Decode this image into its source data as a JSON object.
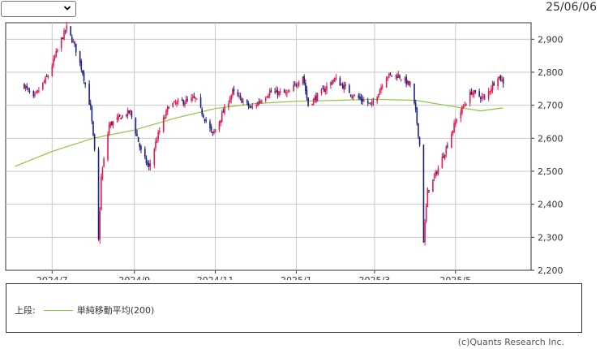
{
  "header": {
    "period_select": "",
    "date": "25/06/06"
  },
  "legend": {
    "section_label": "上段:",
    "ma_label": "単純移動平均(200)",
    "ma_color": "#8cc63f"
  },
  "footer": {
    "copyright": "(c)Quants Research Inc."
  },
  "chart_data": {
    "type": "candlestick",
    "title": "",
    "xlabel": "",
    "ylabel": "",
    "ylim": [
      2200,
      2950
    ],
    "yticks": [
      2200,
      2300,
      2400,
      2500,
      2600,
      2700,
      2800,
      2900
    ],
    "ytick_labels": [
      "2,200",
      "2,300",
      "2,400",
      "2,500",
      "2,600",
      "2,700",
      "2,800",
      "2,900"
    ],
    "xlim": [
      "2024-05-27",
      "2025-06-27"
    ],
    "xticks": [
      "2024-07-01",
      "2024-09-01",
      "2024-11-01",
      "2025-01-01",
      "2025-03-01",
      "2025-05-01"
    ],
    "xtick_labels": [
      "2024/7",
      "2024/9",
      "2024/11",
      "2025/1",
      "2025/3",
      "2025/5"
    ],
    "grid": true,
    "up_color": "#e8194b",
    "down_color": "#1c1f8a",
    "close_keypoints": {
      "dates": [
        "2024-06-10",
        "2024-06-17",
        "2024-06-28",
        "2024-07-08",
        "2024-07-12",
        "2024-07-18",
        "2024-07-24",
        "2024-07-30",
        "2024-08-02",
        "2024-08-05",
        "2024-08-07",
        "2024-08-13",
        "2024-08-22",
        "2024-08-29",
        "2024-09-06",
        "2024-09-12",
        "2024-09-18",
        "2024-09-27",
        "2024-10-07",
        "2024-10-17",
        "2024-10-30",
        "2024-11-14",
        "2024-11-28",
        "2024-12-12",
        "2024-12-26",
        "2025-01-06",
        "2025-01-10",
        "2025-01-20",
        "2025-01-30",
        "2025-02-13",
        "2025-02-27",
        "2025-03-10",
        "2025-03-19",
        "2025-03-28",
        "2025-04-01",
        "2025-04-04",
        "2025-04-07",
        "2025-04-10",
        "2025-04-15",
        "2025-04-23",
        "2025-05-02",
        "2025-05-13",
        "2025-05-23",
        "2025-06-02",
        "2025-06-06"
      ],
      "values": [
        2760,
        2720,
        2790,
        2900,
        2935,
        2880,
        2800,
        2690,
        2560,
        2290,
        2480,
        2640,
        2665,
        2680,
        2560,
        2510,
        2600,
        2700,
        2710,
        2720,
        2610,
        2740,
        2690,
        2740,
        2735,
        2790,
        2700,
        2740,
        2780,
        2730,
        2700,
        2790,
        2790,
        2760,
        2680,
        2580,
        2290,
        2440,
        2480,
        2560,
        2660,
        2740,
        2720,
        2790,
        2770
      ]
    },
    "series": [
      {
        "name": "単純移動平均(200)",
        "type": "line",
        "x": [
          "2024-06-03",
          "2024-07-01",
          "2024-08-01",
          "2024-09-01",
          "2024-10-01",
          "2024-11-01",
          "2024-12-01",
          "2025-01-01",
          "2025-02-01",
          "2025-03-01",
          "2025-04-01",
          "2025-05-01",
          "2025-05-20",
          "2025-06-06"
        ],
        "values": [
          2515,
          2560,
          2600,
          2625,
          2660,
          2690,
          2705,
          2712,
          2715,
          2718,
          2715,
          2695,
          2683,
          2692
        ]
      }
    ]
  }
}
